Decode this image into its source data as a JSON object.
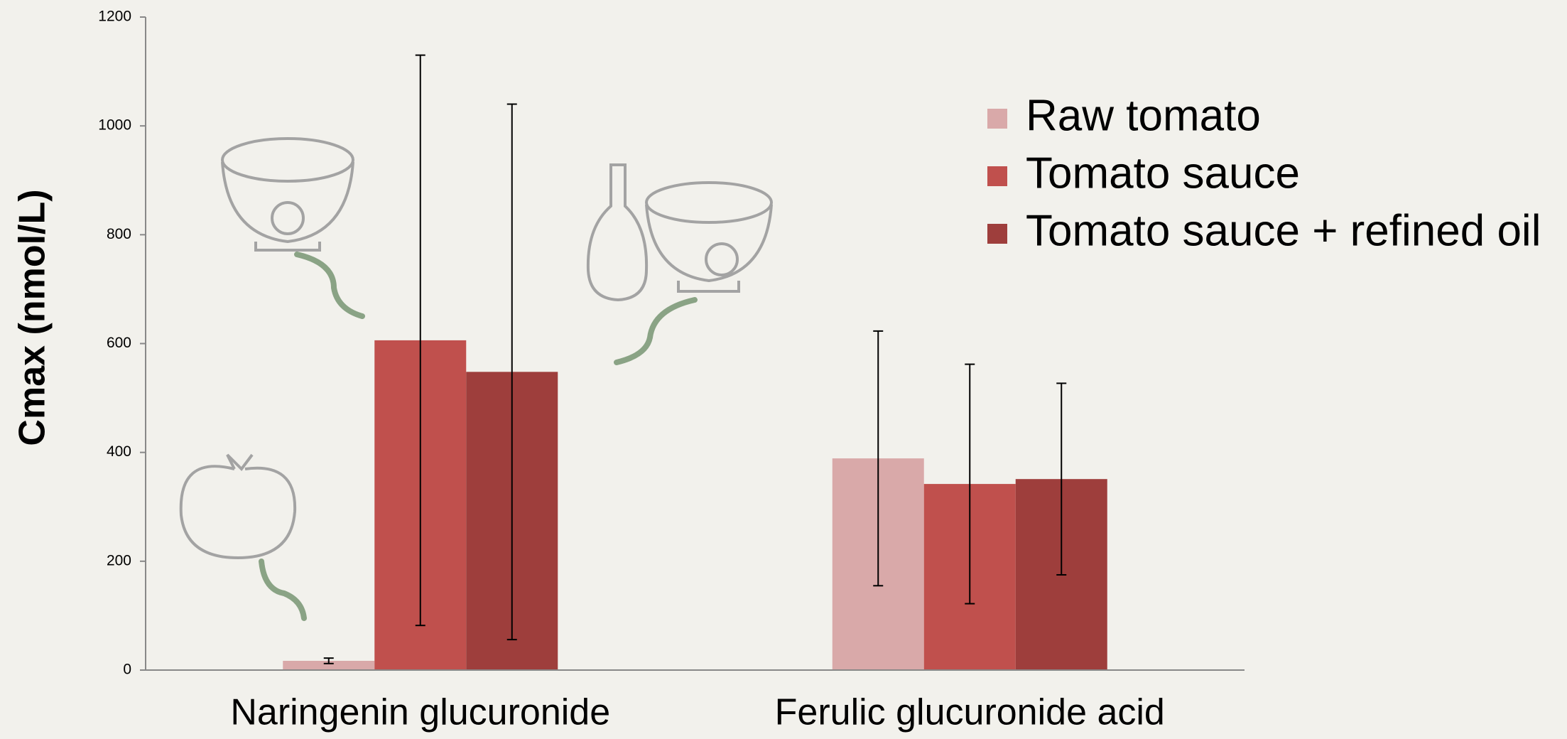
{
  "chart_data": {
    "type": "bar",
    "y_label": "Cmax (nmol/L)",
    "categories": [
      "Naringenin glucuronide",
      "Ferulic glucuronide acid"
    ],
    "series": [
      {
        "name": "Raw tomato",
        "color": "#d9a9a9",
        "values": [
          17,
          389
        ],
        "errors": [
          5,
          234
        ]
      },
      {
        "name": "Tomato sauce",
        "color": "#c0504d",
        "values": [
          606,
          342
        ],
        "errors": [
          524,
          220
        ]
      },
      {
        "name": "Tomato sauce + refined oil",
        "color": "#9e3e3c",
        "values": [
          548,
          351
        ],
        "errors": [
          492,
          176
        ]
      }
    ],
    "ylim": [
      0,
      1200
    ],
    "yticks": [
      0,
      200,
      400,
      600,
      800,
      1000,
      1200
    ],
    "grid": false
  }
}
